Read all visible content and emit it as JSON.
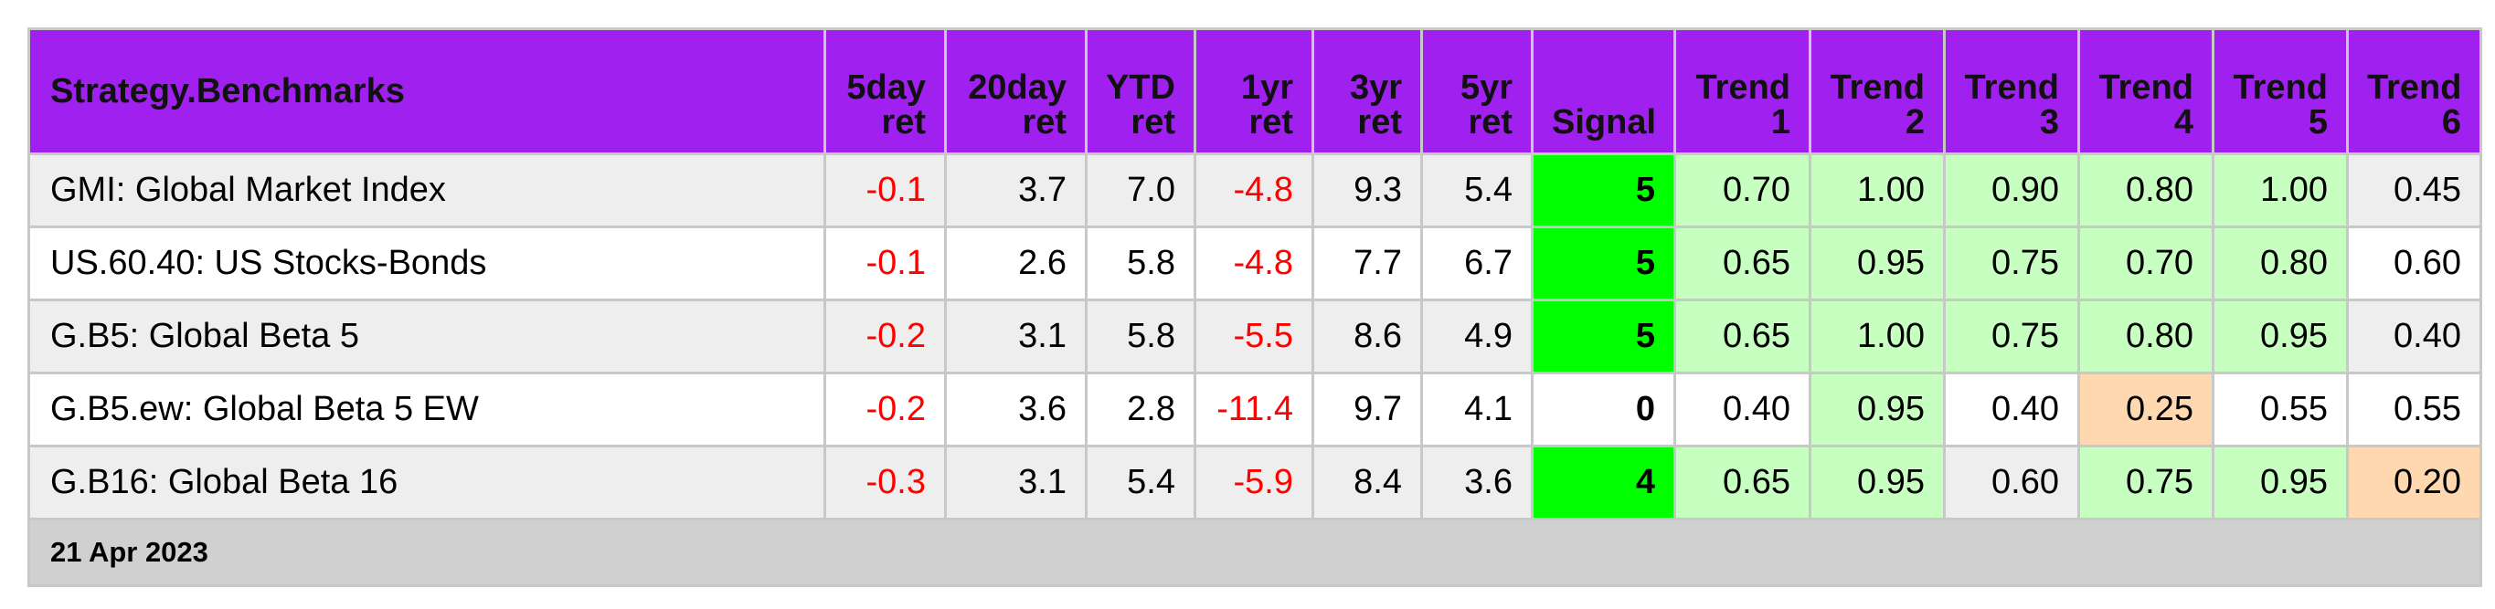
{
  "table": {
    "header": [
      "Strategy.Benchmarks",
      "5day\nret",
      "20day\nret",
      "YTD\nret",
      "1yr\nret",
      "3yr\nret",
      "5yr\nret",
      "Signal",
      "Trend\n1",
      "Trend\n2",
      "Trend\n3",
      "Trend\n4",
      "Trend\n5",
      "Trend\n6"
    ],
    "rows": [
      [
        "GMI: Global Market Index",
        "-0.1",
        "3.7",
        "7.0",
        "-4.8",
        "9.3",
        "5.4",
        "5",
        "0.70",
        "1.00",
        "0.90",
        "0.80",
        "1.00",
        "0.45"
      ],
      [
        "US.60.40: US Stocks-Bonds",
        "-0.1",
        "2.6",
        "5.8",
        "-4.8",
        "7.7",
        "6.7",
        "5",
        "0.65",
        "0.95",
        "0.75",
        "0.70",
        "0.80",
        "0.60"
      ],
      [
        "G.B5: Global Beta 5",
        "-0.2",
        "3.1",
        "5.8",
        "-5.5",
        "8.6",
        "4.9",
        "5",
        "0.65",
        "1.00",
        "0.75",
        "0.80",
        "0.95",
        "0.40"
      ],
      [
        "G.B5.ew: Global Beta 5 EW",
        "-0.2",
        "3.6",
        "2.8",
        "-11.4",
        "9.7",
        "4.1",
        "0",
        "0.40",
        "0.95",
        "0.40",
        "0.25",
        "0.55",
        "0.55"
      ],
      [
        "G.B16: Global Beta 16",
        "-0.3",
        "3.1",
        "5.4",
        "-5.9",
        "8.4",
        "3.6",
        "4",
        "0.65",
        "0.95",
        "0.60",
        "0.75",
        "0.95",
        "0.20"
      ]
    ],
    "footer": "21 Apr 2023"
  }
}
